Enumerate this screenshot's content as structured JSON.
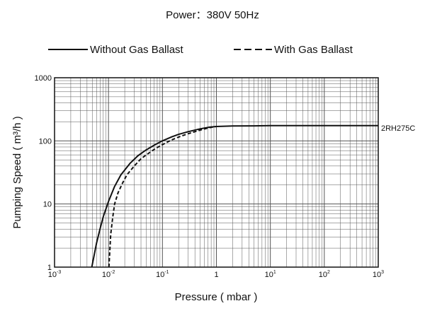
{
  "chart_data": {
    "type": "line",
    "title": "Power：380V 50Hz",
    "xlabel": "Pressure ( mbar )",
    "ylabel": "Pumping Speed ( m³/h )",
    "x_scale": "log",
    "y_scale": "log",
    "xlim": [
      0.001,
      1000
    ],
    "ylim": [
      1,
      1000
    ],
    "x_ticks": [
      {
        "value": 0.001,
        "base": "10",
        "exp": "-3"
      },
      {
        "value": 0.01,
        "base": "10",
        "exp": "-2"
      },
      {
        "value": 0.1,
        "base": "10",
        "exp": "-1"
      },
      {
        "value": 1,
        "base": "1",
        "exp": ""
      },
      {
        "value": 10,
        "base": "10",
        "exp": "1"
      },
      {
        "value": 100,
        "base": "10",
        "exp": "2"
      },
      {
        "value": 1000,
        "base": "10",
        "exp": "3"
      }
    ],
    "y_ticks": [
      {
        "value": 1,
        "label": "1"
      },
      {
        "value": 10,
        "label": "10"
      },
      {
        "value": 100,
        "label": "100"
      },
      {
        "value": 1000,
        "label": "1000"
      }
    ],
    "grid": true,
    "legend_position": "top",
    "curve_label": "2RH275C",
    "series": [
      {
        "name": "Without Gas Ballast",
        "style": "solid",
        "color": "#111111",
        "x": [
          0.0049,
          0.006,
          0.007,
          0.008,
          0.01,
          0.013,
          0.017,
          0.025,
          0.035,
          0.05,
          0.075,
          0.1,
          0.15,
          0.2,
          0.3,
          0.5,
          0.75,
          1,
          2,
          5,
          10,
          100,
          1000
        ],
        "y": [
          1,
          2.4,
          4.1,
          6.3,
          11,
          19,
          29,
          44,
          58,
          72,
          88,
          100,
          116,
          127,
          140,
          155,
          165,
          169,
          172,
          173,
          174,
          174,
          174
        ]
      },
      {
        "name": "With Gas Ballast",
        "style": "dashed",
        "color": "#111111",
        "x": [
          0.0102,
          0.011,
          0.012,
          0.013,
          0.015,
          0.018,
          0.022,
          0.03,
          0.04,
          0.05,
          0.075,
          0.1,
          0.15,
          0.2,
          0.3,
          0.5,
          0.75,
          1
        ],
        "y": [
          1,
          3.3,
          6.2,
          10,
          15,
          21,
          29,
          40,
          52,
          60,
          76,
          87,
          104,
          115,
          130,
          148,
          162,
          169
        ]
      }
    ]
  }
}
